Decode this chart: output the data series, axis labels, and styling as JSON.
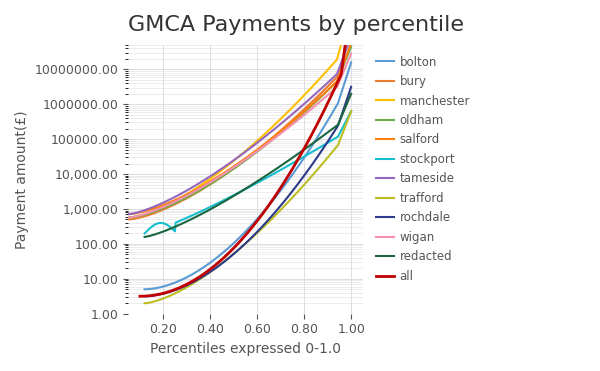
{
  "title": "GMCA Payments by percentile",
  "xlabel": "Percentiles expressed 0-1.0",
  "ylabel": "Payment amount(£)",
  "series": {
    "bolton": {
      "color": "#5b9bd5",
      "lw": 1.5
    },
    "bury": {
      "color": "#ed7d31",
      "lw": 1.5
    },
    "manchester": {
      "color": "#ffc000",
      "lw": 1.5
    },
    "oldham": {
      "color": "#70ad47",
      "lw": 1.5
    },
    "salford": {
      "color": "#ff7f0e",
      "lw": 1.5
    },
    "stockport": {
      "color": "#17becf",
      "lw": 1.5
    },
    "tameside": {
      "color": "#9467bd",
      "lw": 1.5
    },
    "trafford": {
      "color": "#bcbd22",
      "lw": 1.5
    },
    "rochdale": {
      "color": "#2c3a8c",
      "lw": 1.5
    },
    "wigan": {
      "color": "#f48fb1",
      "lw": 1.5
    },
    "redacted": {
      "color": "#1a6640",
      "lw": 1.5
    },
    "all": {
      "color": "#c00000",
      "lw": 2.0
    }
  },
  "legend_colors": {
    "bolton": "#5b9bd5",
    "bury": "#ed7d31",
    "manchester": "#ffc000",
    "oldham": "#70ad47",
    "salford": "#ff7f0e",
    "stockport": "#17becf",
    "tameside": "#9467bd",
    "trafford": "#bcbd22",
    "rochdale": "#2c3a8c",
    "wigan": "#f48fb1",
    "redacted": "#1a6640",
    "all": "#c00000"
  },
  "background_color": "#ffffff",
  "grid_color": "#dddddd",
  "title_fontsize": 16,
  "axis_label_fontsize": 10,
  "tick_fontsize": 9
}
